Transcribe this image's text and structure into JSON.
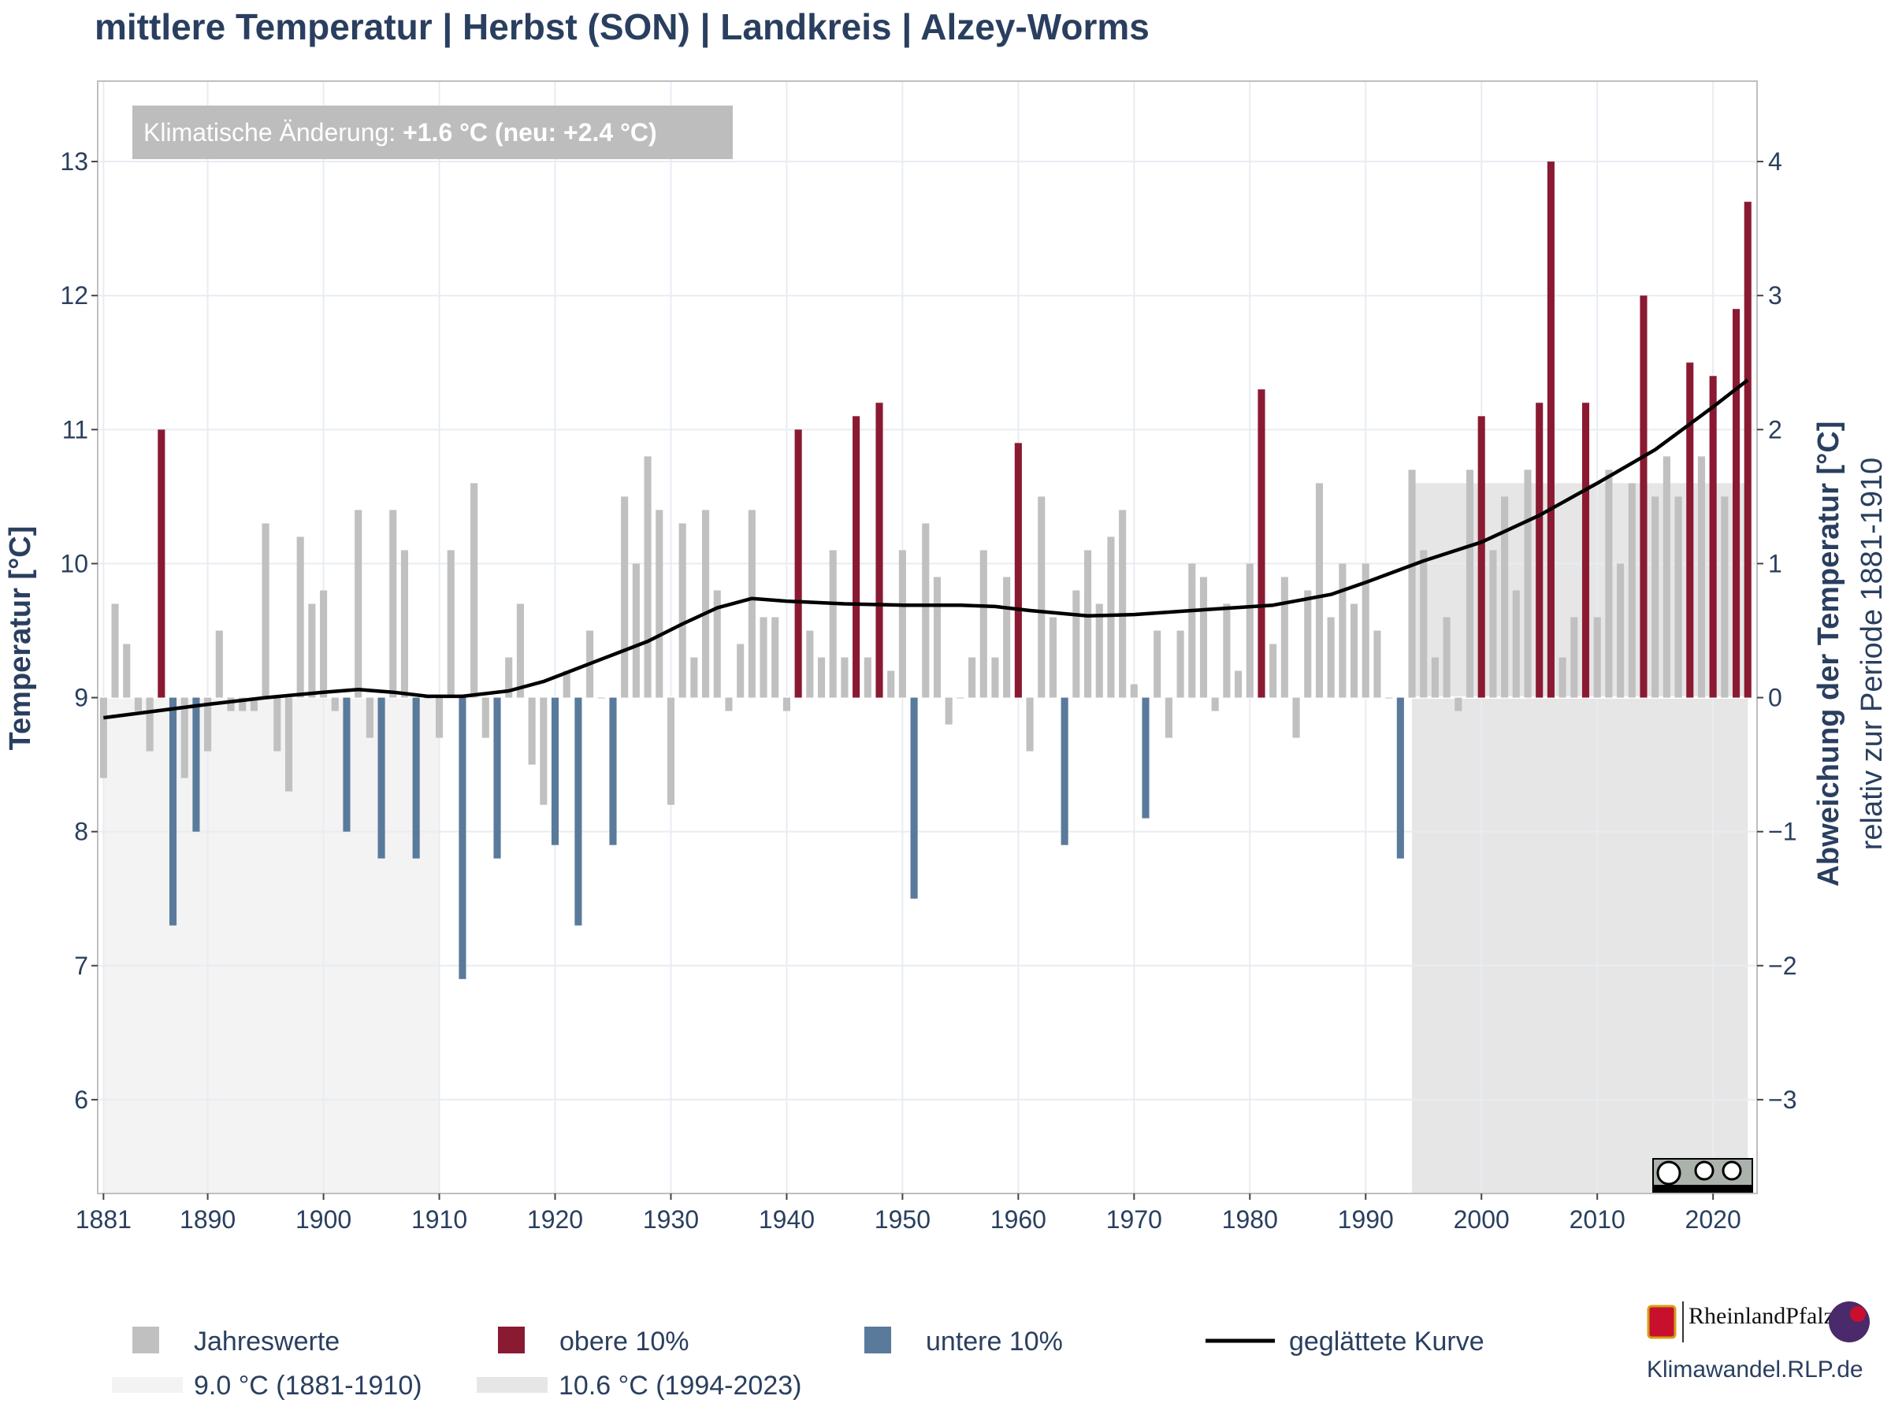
{
  "chart_data": {
    "type": "bar",
    "title": "mittlere Temperatur | Herbst (SON) | Landkreis | Alzey-Worms",
    "annotation": {
      "prefix": "Klimatische Änderung: ",
      "value": "+1.6 °C (neu: +2.4 °C)"
    },
    "ylabel": "Temperatur [°C]",
    "y2label": "Abweichung der Temperatur [°C]",
    "y2sublabel": "relativ zur Periode 1881-1910",
    "xlim": [
      1880.5,
      2023.8
    ],
    "ylim": [
      5.3,
      13.6
    ],
    "baseline": 9.0,
    "x_ticks": [
      1881,
      1890,
      1900,
      1910,
      1920,
      1930,
      1940,
      1950,
      1960,
      1970,
      1980,
      1990,
      2000,
      2010,
      2020
    ],
    "y_ticks": [
      6,
      7,
      8,
      9,
      10,
      11,
      12,
      13
    ],
    "y2_ticks": [
      "−3",
      "−2",
      "−1",
      "0",
      "1",
      "2",
      "3",
      "4"
    ],
    "y2_tick_values": [
      -3,
      -2,
      -1,
      0,
      1,
      2,
      3,
      4
    ],
    "grid": true,
    "legend_position": "bottom",
    "colors": {
      "normal": "#c0c0c0",
      "upper": "#8a1a32",
      "lower": "#5a7a9c",
      "smooth": "#000000",
      "period_old": "#f3f3f3",
      "period_new": "#e6e6e6",
      "badge": "#bdbdbd"
    },
    "periods": [
      {
        "start": 1881,
        "end": 1910,
        "value": 9.0,
        "label": "9.0 °C (1881-1910)"
      },
      {
        "start": 1994,
        "end": 2023,
        "value": 10.6,
        "label": "10.6 °C (1994-2023)"
      }
    ],
    "legend": [
      {
        "label": "Jahreswerte",
        "kind": "normal"
      },
      {
        "label": "obere 10%",
        "kind": "upper"
      },
      {
        "label": "untere 10%",
        "kind": "lower"
      },
      {
        "label": "geglättete Kurve",
        "kind": "smooth"
      },
      {
        "label": "9.0 °C (1881-1910)",
        "kind": "period_old"
      },
      {
        "label": "10.6 °C (1994-2023)",
        "kind": "period_new"
      }
    ],
    "years_start": 1881,
    "values": [
      8.4,
      9.7,
      9.4,
      8.9,
      8.6,
      11.0,
      7.3,
      8.4,
      8.0,
      8.6,
      9.5,
      8.9,
      8.9,
      8.9,
      10.3,
      8.6,
      8.3,
      10.2,
      9.7,
      9.8,
      8.9,
      8.0,
      10.4,
      8.7,
      7.8,
      10.4,
      10.1,
      7.8,
      9.0,
      8.7,
      10.1,
      6.9,
      10.6,
      8.7,
      7.8,
      9.3,
      9.7,
      8.5,
      8.2,
      7.9,
      9.2,
      7.3,
      9.5,
      9.0,
      7.9,
      10.5,
      10.0,
      10.8,
      10.4,
      8.2,
      10.3,
      9.3,
      10.4,
      9.8,
      8.9,
      9.4,
      10.4,
      9.6,
      9.6,
      8.9,
      11.0,
      9.5,
      9.3,
      10.1,
      9.3,
      11.1,
      9.3,
      11.2,
      9.2,
      10.1,
      7.5,
      10.3,
      9.9,
      8.8,
      9.0,
      9.3,
      10.1,
      9.3,
      9.9,
      10.9,
      8.6,
      10.5,
      9.6,
      7.9,
      9.8,
      10.1,
      9.7,
      10.2,
      10.4,
      9.1,
      8.1,
      9.5,
      8.7,
      9.5,
      10.0,
      9.9,
      8.9,
      9.7,
      9.2,
      10.0,
      11.3,
      9.4,
      9.9,
      8.7,
      9.8,
      10.6,
      9.6,
      10.0,
      9.7,
      10.0,
      9.5,
      9.0,
      7.8,
      10.7,
      10.1,
      9.3,
      9.6,
      8.9,
      10.7,
      11.1,
      10.1,
      10.5,
      9.8,
      10.7,
      11.2,
      13.0,
      9.3,
      9.6,
      11.2,
      9.6,
      10.7,
      10.0,
      10.6,
      12.0,
      10.5,
      10.8,
      10.5,
      11.5,
      10.8,
      11.4,
      10.5,
      11.9,
      12.7
    ],
    "categories": [
      "normal",
      "normal",
      "normal",
      "normal",
      "normal",
      "upper",
      "lower",
      "normal",
      "lower",
      "normal",
      "normal",
      "normal",
      "normal",
      "normal",
      "normal",
      "normal",
      "normal",
      "normal",
      "normal",
      "normal",
      "normal",
      "lower",
      "normal",
      "normal",
      "lower",
      "normal",
      "normal",
      "lower",
      "normal",
      "normal",
      "normal",
      "lower",
      "normal",
      "normal",
      "lower",
      "normal",
      "normal",
      "normal",
      "normal",
      "lower",
      "normal",
      "lower",
      "normal",
      "normal",
      "lower",
      "normal",
      "normal",
      "normal",
      "normal",
      "normal",
      "normal",
      "normal",
      "normal",
      "normal",
      "normal",
      "normal",
      "normal",
      "normal",
      "normal",
      "normal",
      "upper",
      "normal",
      "normal",
      "normal",
      "normal",
      "upper",
      "normal",
      "upper",
      "normal",
      "normal",
      "lower",
      "normal",
      "normal",
      "normal",
      "normal",
      "normal",
      "normal",
      "normal",
      "normal",
      "upper",
      "normal",
      "normal",
      "normal",
      "lower",
      "normal",
      "normal",
      "normal",
      "normal",
      "normal",
      "normal",
      "lower",
      "normal",
      "normal",
      "normal",
      "normal",
      "normal",
      "normal",
      "normal",
      "normal",
      "normal",
      "upper",
      "normal",
      "normal",
      "normal",
      "normal",
      "normal",
      "normal",
      "normal",
      "normal",
      "normal",
      "normal",
      "normal",
      "lower",
      "normal",
      "normal",
      "normal",
      "normal",
      "normal",
      "normal",
      "upper",
      "normal",
      "normal",
      "normal",
      "normal",
      "upper",
      "upper",
      "normal",
      "normal",
      "upper",
      "normal",
      "normal",
      "normal",
      "normal",
      "upper",
      "normal",
      "normal",
      "normal",
      "upper",
      "normal",
      "upper",
      "normal",
      "upper",
      "upper"
    ],
    "smooth": {
      "x": [
        1881,
        1890,
        1895,
        1900,
        1903,
        1906,
        1909,
        1912,
        1916,
        1919,
        1922,
        1925,
        1928,
        1931,
        1934,
        1937,
        1940,
        1945,
        1950,
        1955,
        1958,
        1961,
        1966,
        1970,
        1975,
        1982,
        1987,
        1990,
        1995,
        2000,
        2005,
        2010,
        2015,
        2020,
        2023
      ],
      "y": [
        8.85,
        8.95,
        9.0,
        9.04,
        9.06,
        9.04,
        9.01,
        9.01,
        9.05,
        9.12,
        9.22,
        9.32,
        9.42,
        9.55,
        9.67,
        9.74,
        9.72,
        9.7,
        9.69,
        9.69,
        9.68,
        9.65,
        9.61,
        9.62,
        9.65,
        9.69,
        9.77,
        9.86,
        10.02,
        10.16,
        10.36,
        10.6,
        10.85,
        11.17,
        11.37
      ]
    }
  },
  "footer": {
    "website": "Klimawandel.RLP.de",
    "logo_text": "RheinlandPfalz"
  }
}
